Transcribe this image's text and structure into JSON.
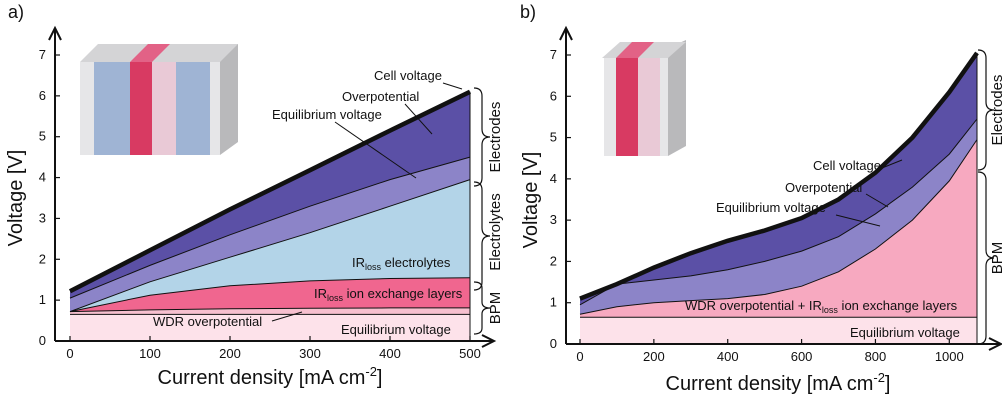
{
  "chart_data": [
    {
      "type": "area",
      "panel_label": "a)",
      "xlabel": "Current density [mA cm",
      "xlabel_sup": "-2",
      "xlabel_end": "]",
      "ylabel": "Voltage [V]",
      "xlim": [
        0,
        500
      ],
      "ylim": [
        0,
        7
      ],
      "xticks": [
        "0",
        "100",
        "200",
        "300",
        "400",
        "500"
      ],
      "yticks": [
        "0",
        "1",
        "2",
        "3",
        "4",
        "5",
        "6",
        "7"
      ],
      "x": [
        0,
        100,
        200,
        300,
        400,
        500
      ],
      "layers": [
        {
          "key": "equilibrium",
          "color": "#fde2ea",
          "values": [
            0.65,
            0.65,
            0.65,
            0.65,
            0.65,
            0.65
          ]
        },
        {
          "key": "wdr",
          "color": "#f7c0cf",
          "values": [
            0.72,
            0.76,
            0.79,
            0.8,
            0.81,
            0.81
          ]
        },
        {
          "key": "ir_iex",
          "color": "#f0668f",
          "values": [
            0.72,
            1.12,
            1.35,
            1.47,
            1.53,
            1.55
          ]
        },
        {
          "key": "ir_electrolytes",
          "color": "#b3d4e8",
          "values": [
            0.72,
            1.45,
            2.05,
            2.65,
            3.3,
            3.95
          ]
        },
        {
          "key": "overpotential_electrodes",
          "color": "#8c84c8",
          "values": [
            1.05,
            1.85,
            2.6,
            3.3,
            3.95,
            4.5
          ]
        },
        {
          "key": "cell",
          "color": "#5b50a6",
          "values": [
            1.22,
            2.22,
            3.22,
            4.18,
            5.15,
            6.1
          ]
        }
      ],
      "annotations": {
        "cell_voltage": "Cell voltage",
        "overpotential": "Overpotential",
        "equilibrium_voltage": "Equilibrium voltage",
        "ir_loss": "IR",
        "ir_sub": "loss",
        "ir_electrolytes": " electrolytes",
        "ir_iex": " ion exchange layers",
        "wdr": "WDR overpotential",
        "equilibrium_bottom": "Equilibrium voltage"
      },
      "brackets": [
        "Electrodes",
        "Electrolytes",
        "BPM"
      ]
    },
    {
      "type": "area",
      "panel_label": "b)",
      "xlabel": "Current density [mA cm",
      "xlabel_sup": "-2",
      "xlabel_end": "]",
      "ylabel": "Voltage [V]",
      "xlim": [
        0,
        1075
      ],
      "ylim": [
        0,
        7
      ],
      "xticks": [
        "0",
        "200",
        "400",
        "600",
        "800",
        "1000"
      ],
      "yticks": [
        "0",
        "1",
        "2",
        "3",
        "4",
        "5",
        "6",
        "7"
      ],
      "x": [
        0,
        100,
        200,
        300,
        400,
        500,
        600,
        700,
        800,
        900,
        1000,
        1075
      ],
      "layers": [
        {
          "key": "equilibrium",
          "color": "#fde2ea",
          "values": [
            0.65,
            0.65,
            0.65,
            0.65,
            0.65,
            0.65,
            0.65,
            0.65,
            0.65,
            0.65,
            0.65,
            0.65
          ]
        },
        {
          "key": "wdr_ir",
          "color": "#f7a9c0",
          "values": [
            0.72,
            0.9,
            1.0,
            1.05,
            1.1,
            1.2,
            1.4,
            1.75,
            2.3,
            3.0,
            3.95,
            4.95
          ]
        },
        {
          "key": "overpotential_electrodes",
          "color": "#8c84c8",
          "values": [
            0.95,
            1.45,
            1.55,
            1.65,
            1.8,
            2.0,
            2.25,
            2.6,
            3.15,
            3.8,
            4.6,
            5.45
          ]
        },
        {
          "key": "cell",
          "color": "#5b50a6",
          "values": [
            1.1,
            1.45,
            1.85,
            2.2,
            2.5,
            2.75,
            3.05,
            3.5,
            4.15,
            5.0,
            6.1,
            7.05
          ]
        }
      ],
      "annotations": {
        "cell_voltage": "Cell voltage",
        "overpotential": "Overpotential",
        "equilibrium_voltage": "Equilibrium voltage",
        "wdr_ir": "WDR overpotential + IR",
        "ir_sub": "loss",
        "ir_iex": " ion exchange layers",
        "equilibrium_bottom": "Equilibrium voltage"
      },
      "brackets": [
        "Electrodes",
        "BPM"
      ]
    }
  ]
}
